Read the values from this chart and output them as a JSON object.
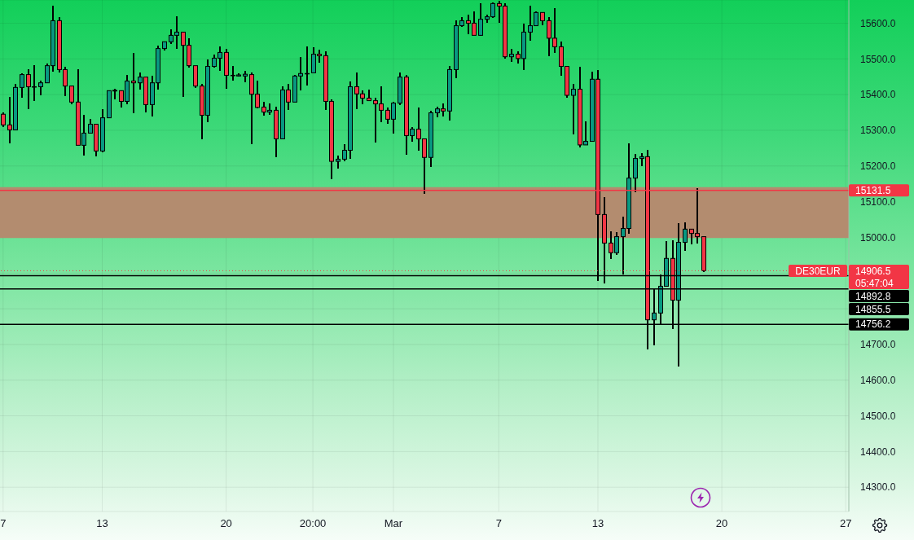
{
  "chart_data": {
    "type": "candlestick",
    "categories": [
      "7",
      null,
      null,
      null,
      null,
      null,
      null,
      null,
      null,
      null,
      null,
      null,
      null,
      null,
      null,
      null,
      "13",
      null,
      null,
      null,
      null,
      null,
      null,
      null,
      null,
      null,
      null,
      null,
      null,
      null,
      null,
      null,
      null,
      null,
      null,
      null,
      "20",
      null,
      null,
      null,
      null,
      null,
      null,
      null,
      null,
      null,
      null,
      null,
      null,
      null,
      "20:00",
      null,
      null,
      null,
      null,
      null,
      null,
      null,
      null,
      null,
      null,
      null,
      null,
      "Mar",
      null,
      null,
      null,
      null,
      null,
      null,
      null,
      null,
      null,
      null,
      null,
      null,
      null,
      null,
      null,
      null,
      "7",
      null,
      null,
      null,
      null,
      null,
      null,
      null,
      null,
      null,
      null,
      null,
      null,
      null,
      null,
      null,
      "13",
      null,
      null,
      null,
      null,
      null,
      null,
      null,
      null,
      null,
      null,
      null,
      null,
      null,
      null,
      null,
      null,
      null,
      null,
      null,
      "20",
      null,
      null,
      null,
      null,
      null,
      null,
      null,
      null,
      null,
      null,
      null,
      null,
      null,
      null,
      null,
      null,
      null,
      null,
      null,
      "27"
    ],
    "ohlc": [
      [
        15345,
        15350,
        15309,
        15315
      ],
      [
        15315,
        15393,
        15264,
        15301
      ],
      [
        15301,
        15429,
        15301,
        15420
      ],
      [
        15420,
        15459,
        15392,
        15456
      ],
      [
        15456,
        15471,
        15360,
        15422
      ],
      [
        15422,
        15482,
        15383,
        15422
      ],
      [
        15422,
        15438,
        15398,
        15433
      ],
      [
        15433,
        15488,
        15433,
        15481
      ],
      [
        15481,
        15649,
        15465,
        15607
      ],
      [
        15607,
        15616,
        15461,
        15470
      ],
      [
        15470,
        15477,
        15395,
        15424
      ],
      [
        15424,
        15424,
        15374,
        15379
      ],
      [
        15379,
        15471,
        15258,
        15258
      ],
      [
        15258,
        15343,
        15229,
        15292
      ],
      [
        15292,
        15331,
        15292,
        15317
      ],
      [
        15317,
        15317,
        15227,
        15242
      ],
      [
        15242,
        15360,
        15239,
        15335
      ],
      [
        15335,
        15411,
        15335,
        15411
      ],
      [
        15410,
        15417,
        15386,
        15412
      ],
      [
        15411,
        15411,
        15364,
        15381
      ],
      [
        15381,
        15454,
        15373,
        15438
      ],
      [
        15438,
        15516,
        15348,
        15433
      ],
      [
        15433,
        15462,
        15414,
        15449
      ],
      [
        15449,
        15449,
        15350,
        15372
      ],
      [
        15372,
        15452,
        15339,
        15433
      ],
      [
        15433,
        15537,
        15414,
        15529
      ],
      [
        15529,
        15548,
        15524,
        15548
      ],
      [
        15548,
        15582,
        15542,
        15566
      ],
      [
        15566,
        15619,
        15528,
        15575
      ],
      [
        15575,
        15577,
        15394,
        15538
      ],
      [
        15538,
        15557,
        15476,
        15481
      ],
      [
        15481,
        15481,
        15419,
        15424
      ],
      [
        15424,
        15431,
        15275,
        15342
      ],
      [
        15342,
        15498,
        15323,
        15479
      ],
      [
        15479,
        15513,
        15476,
        15502
      ],
      [
        15502,
        15534,
        15467,
        15518
      ],
      [
        15518,
        15529,
        15417,
        15454
      ],
      [
        15454,
        15481,
        15439,
        15454
      ],
      [
        15452,
        15459,
        15451,
        15455
      ],
      [
        15452,
        15467,
        15435,
        15457
      ],
      [
        15456,
        15461,
        15261,
        15401
      ],
      [
        15401,
        15440,
        15362,
        15364
      ],
      [
        15365,
        15379,
        15341,
        15351
      ],
      [
        15351,
        15376,
        15344,
        15356
      ],
      [
        15356,
        15367,
        15225,
        15276
      ],
      [
        15276,
        15423,
        15276,
        15413
      ],
      [
        15413,
        15429,
        15357,
        15379
      ],
      [
        15379,
        15456,
        15379,
        15452
      ],
      [
        15452,
        15506,
        15412,
        15459
      ],
      [
        15459,
        15534,
        15426,
        15459
      ],
      [
        15461,
        15532,
        15461,
        15513
      ],
      [
        15513,
        15525,
        15490,
        15509
      ],
      [
        15509,
        15522,
        15357,
        15381
      ],
      [
        15381,
        15386,
        15163,
        15213
      ],
      [
        15213,
        15230,
        15193,
        15219
      ],
      [
        15219,
        15260,
        15214,
        15244
      ],
      [
        15244,
        15436,
        15220,
        15422
      ],
      [
        15422,
        15463,
        15360,
        15402
      ],
      [
        15402,
        15411,
        15373,
        15390
      ],
      [
        15390,
        15415,
        15383,
        15383
      ],
      [
        15383,
        15392,
        15266,
        15374
      ],
      [
        15374,
        15422,
        15323,
        15356
      ],
      [
        15356,
        15363,
        15318,
        15331
      ],
      [
        15331,
        15379,
        15291,
        15376
      ],
      [
        15376,
        15462,
        15370,
        15449
      ],
      [
        15449,
        15454,
        15232,
        15285
      ],
      [
        15285,
        15309,
        15268,
        15303
      ],
      [
        15303,
        15363,
        15243,
        15276
      ],
      [
        15276,
        15278,
        15122,
        15224
      ],
      [
        15224,
        15354,
        15198,
        15349
      ],
      [
        15349,
        15365,
        15337,
        15360
      ],
      [
        15360,
        15376,
        15339,
        15354
      ],
      [
        15354,
        15481,
        15328,
        15470
      ],
      [
        15470,
        15609,
        15446,
        15593
      ],
      [
        15593,
        15616,
        15589,
        15607
      ],
      [
        15607,
        15625,
        15569,
        15600
      ],
      [
        15600,
        15632,
        15566,
        15566
      ],
      [
        15566,
        15657,
        15564,
        15611
      ],
      [
        15611,
        15623,
        15602,
        15618
      ],
      [
        15618,
        15659,
        15614,
        15655
      ],
      [
        15655,
        15663,
        15602,
        15648
      ],
      [
        15648,
        15655,
        15501,
        15506
      ],
      [
        15506,
        15527,
        15492,
        15513
      ],
      [
        15513,
        15522,
        15487,
        15501
      ],
      [
        15501,
        15598,
        15469,
        15575
      ],
      [
        15575,
        15649,
        15551,
        15593
      ],
      [
        15593,
        15632,
        15593,
        15630
      ],
      [
        15630,
        15630,
        15595,
        15607
      ],
      [
        15607,
        15616,
        15508,
        15558
      ],
      [
        15558,
        15643,
        15516,
        15534
      ],
      [
        15534,
        15548,
        15453,
        15479
      ],
      [
        15479,
        15479,
        15392,
        15398
      ],
      [
        15398,
        15429,
        15289,
        15415
      ],
      [
        15415,
        15479,
        15252,
        15259
      ],
      [
        15259,
        15326,
        15259,
        15269
      ],
      [
        15269,
        15465,
        15269,
        15443
      ],
      [
        15443,
        15468,
        14878,
        15064
      ],
      [
        15064,
        15112,
        14871,
        14984
      ],
      [
        14984,
        15018,
        14940,
        14957
      ],
      [
        14957,
        15014,
        14950,
        15002
      ],
      [
        15002,
        15059,
        14896,
        15025
      ],
      [
        15025,
        15263,
        15010,
        15166
      ],
      [
        15166,
        15233,
        15127,
        15221
      ],
      [
        15221,
        15237,
        15200,
        15226
      ],
      [
        15226,
        15246,
        14686,
        14769
      ],
      [
        14769,
        14856,
        14698,
        14788
      ],
      [
        14788,
        14897,
        14757,
        14863
      ],
      [
        14863,
        14989,
        14863,
        14941
      ],
      [
        14941,
        14991,
        14743,
        14824
      ],
      [
        14824,
        15039,
        14639,
        14986
      ],
      [
        14986,
        15043,
        14963,
        15023
      ],
      [
        15023,
        15023,
        14981,
        15011
      ],
      [
        15011,
        15139,
        14983,
        15002
      ],
      [
        15002,
        15002,
        14902,
        14906.5
      ],
      null,
      null,
      null,
      null,
      null,
      null,
      null,
      null,
      null,
      null,
      null,
      null,
      null,
      null,
      null,
      null,
      null,
      null,
      null,
      null,
      null,
      null,
      null
    ],
    "colors": [
      "#f23645",
      "#f23645",
      "#089981",
      "#089981",
      "#f23645",
      "#089981",
      "#089981",
      "#089981",
      "#089981",
      "#f23645",
      "#f23645",
      "#f23645",
      "#f23645",
      "#089981",
      "#089981",
      "#f23645",
      "#089981",
      "#089981",
      "#089981",
      "#f23645",
      "#089981",
      "#f23645",
      "#089981",
      "#f23645",
      "#089981",
      "#089981",
      "#089981",
      "#089981",
      "#089981",
      "#f23645",
      "#f23645",
      "#f23645",
      "#f23645",
      "#089981",
      "#089981",
      "#089981",
      "#f23645",
      "#089981",
      "#089981",
      "#089981",
      "#f23645",
      "#f23645",
      "#f23645",
      "#089981",
      "#f23645",
      "#089981",
      "#f23645",
      "#089981",
      "#089981",
      "#089981",
      "#089981",
      "#f23645",
      "#f23645",
      "#f23645",
      "#089981",
      "#089981",
      "#089981",
      "#f23645",
      "#f23645",
      "#f23645",
      "#f23645",
      "#f23645",
      "#f23645",
      "#089981",
      "#089981",
      "#f23645",
      "#089981",
      "#f23645",
      "#f23645",
      "#089981",
      "#089981",
      "#f23645",
      "#089981",
      "#089981",
      "#089981",
      "#f23645",
      "#f23645",
      "#089981",
      "#089981",
      "#089981",
      "#f23645",
      "#f23645",
      "#089981",
      "#f23645",
      "#089981",
      "#089981",
      "#089981",
      "#f23645",
      "#f23645",
      "#f23645",
      "#f23645",
      "#f23645",
      "#089981",
      "#f23645",
      "#089981",
      "#089981",
      "#f23645",
      "#f23645",
      "#f23645",
      "#089981",
      "#089981",
      "#089981",
      "#089981",
      "#089981",
      "#f23645",
      "#089981",
      "#089981",
      "#089981",
      "#f23645",
      "#089981",
      "#089981",
      "#f23645",
      "#f23645",
      "#f23645",
      null,
      null,
      null,
      null,
      null,
      null,
      null,
      null,
      null,
      null,
      null,
      null,
      null,
      null,
      null,
      null,
      null,
      null,
      null,
      null,
      null,
      null,
      null
    ],
    "ylim": [
      14232,
      15665
    ],
    "yticks": [
      {
        "value": 14300,
        "label": "14300.0"
      },
      {
        "value": 14400,
        "label": "14400.0"
      },
      {
        "value": 14500,
        "label": "14500.0"
      },
      {
        "value": 14600,
        "label": "14600.0"
      },
      {
        "value": 14700,
        "label": "14700.0"
      },
      {
        "value": 14800,
        "label": null
      },
      {
        "value": 14900,
        "label": null
      },
      {
        "value": 15000,
        "label": "15000.0"
      },
      {
        "value": 15100,
        "label": "15100.0"
      },
      {
        "value": 15200,
        "label": "15200.0"
      },
      {
        "value": 15300,
        "label": "15300.0"
      },
      {
        "value": 15400,
        "label": "15400.0"
      },
      {
        "value": 15500,
        "label": "15500.0"
      },
      {
        "value": 15600,
        "label": "15600.0"
      }
    ],
    "grid": true,
    "ref_lines": [
      {
        "axis": "y",
        "value": 15131.5,
        "label": "15131.5",
        "color": "#f23645"
      },
      {
        "axis": "y",
        "value": 14906.5,
        "label": "DE30EUR",
        "color": "#f23645",
        "line_style": "dotted"
      },
      {
        "axis": "y",
        "value": 14892.8,
        "label": "14892.8",
        "color": "#000000"
      },
      {
        "axis": "y",
        "value": 14855.5,
        "label": "14855.5",
        "color": "#000000"
      },
      {
        "axis": "y",
        "value": 14756.2,
        "label": "14756.2",
        "color": "#000000"
      }
    ],
    "bands": [
      {
        "axis": "y",
        "from": 14998,
        "to": 15141,
        "color": "#b38c6f"
      }
    ],
    "annotations": [
      "14906.5",
      "05:47:04"
    ]
  }
}
